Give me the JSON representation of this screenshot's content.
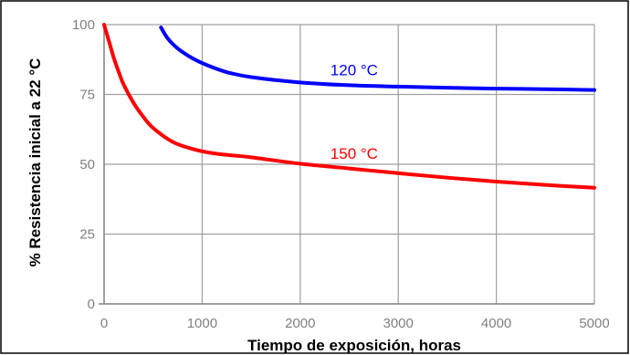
{
  "chart_data": {
    "type": "line",
    "title": "",
    "xlabel": "Tiempo de exposición, horas",
    "ylabel": "% Resistencia inicial a 22 °C",
    "xlim": [
      0,
      5000
    ],
    "ylim": [
      0,
      100
    ],
    "x_ticks": [
      "0",
      "1000",
      "2000",
      "3000",
      "4000",
      "5000"
    ],
    "y_ticks": [
      "0",
      "25",
      "50",
      "75",
      "100"
    ],
    "grid": true,
    "legend": "none",
    "series": [
      {
        "name": "120 °C",
        "color": "#0000ff",
        "x": [
          580,
          650,
          750,
          900,
          1050,
          1250,
          1500,
          2000,
          2500,
          3000,
          3500,
          4000,
          4500,
          5000
        ],
        "y": [
          99,
          95,
          91.5,
          88,
          85.5,
          83,
          81.2,
          79.3,
          78.3,
          77.8,
          77.4,
          77.1,
          76.9,
          76.6
        ]
      },
      {
        "name": "150 °C",
        "color": "#ff0000",
        "x": [
          0,
          50,
          100,
          150,
          200,
          300,
          400,
          500,
          700,
          900,
          1100,
          1300,
          1500,
          2000,
          2500,
          3000,
          3500,
          4000,
          4500,
          5000
        ],
        "y": [
          100,
          94,
          88,
          83,
          78.5,
          72,
          67,
          63,
          58,
          55.5,
          54,
          53.2,
          52.5,
          50.2,
          48.5,
          46.8,
          45.2,
          43.8,
          42.6,
          41.6
        ]
      }
    ]
  }
}
